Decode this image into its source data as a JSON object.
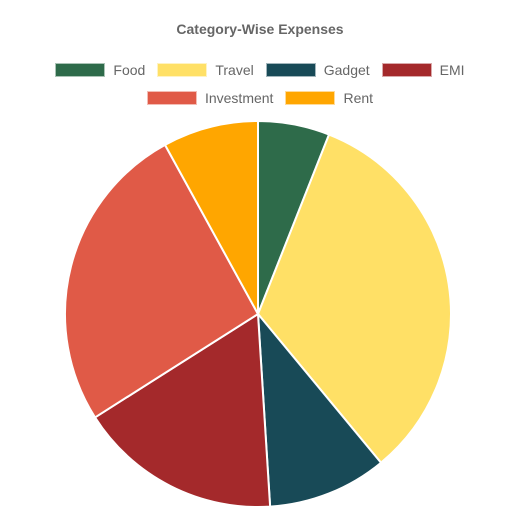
{
  "chart_data": {
    "type": "pie",
    "title": "Category-Wise Expenses",
    "legend_position": "top",
    "categories": [
      "Food",
      "Travel",
      "Gadget",
      "EMI",
      "Investment",
      "Rent"
    ],
    "values": [
      6,
      33,
      10,
      17,
      26,
      8
    ],
    "colors": [
      "#2e6b4a",
      "#ffe066",
      "#184a57",
      "#a4292b",
      "#e05a47",
      "#ffa600"
    ],
    "start_angle_deg": 0,
    "direction": "clockwise"
  }
}
